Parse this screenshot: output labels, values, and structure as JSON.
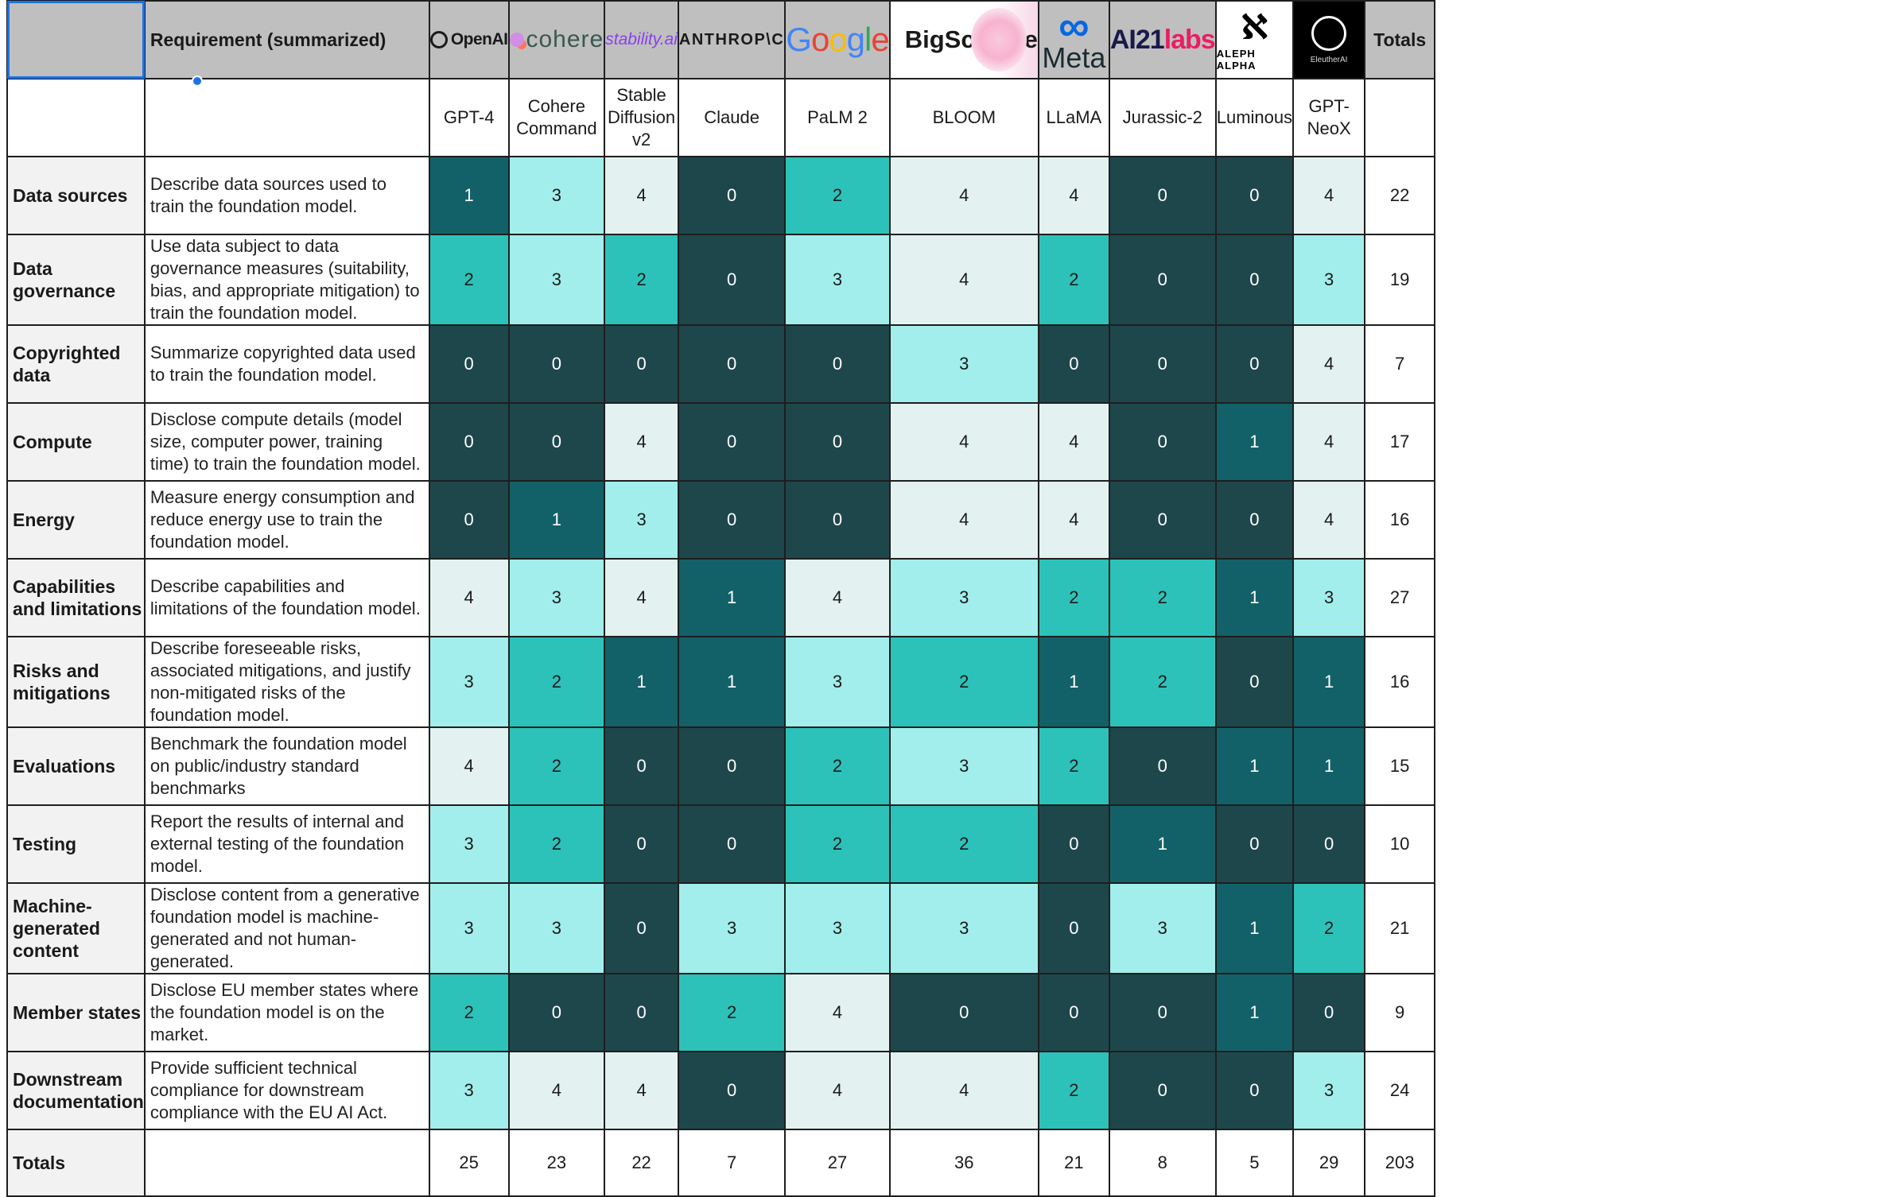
{
  "header": {
    "requirement_label": "Requirement (summarized)",
    "totals_label": "Totals",
    "logos": [
      {
        "name": "OpenAI",
        "icon": "openai-icon"
      },
      {
        "name": "cohere",
        "icon": "cohere-icon"
      },
      {
        "name": "stability.ai",
        "icon": "stability-icon"
      },
      {
        "name": "ANTHROP\\C",
        "icon": "anthropic-icon"
      },
      {
        "name": "Google",
        "icon": "google-icon"
      },
      {
        "name": "BigScience",
        "icon": "bigscience-blossom-icon"
      },
      {
        "name": "Meta",
        "icon": "meta-infinity-icon"
      },
      {
        "name": "AI21labs",
        "icon": "ai21-icon"
      },
      {
        "name": "ALEPH ALPHA",
        "icon": "aleph-alpha-icon"
      },
      {
        "name": "EleutherAI",
        "icon": "eleuther-icon"
      }
    ]
  },
  "models": [
    "GPT-4",
    "Cohere Command",
    "Stable Diffusion v2",
    "Claude",
    "PaLM 2",
    "BLOOM",
    "LLaMA",
    "Jurassic-2",
    "Luminous",
    "GPT-NeoX"
  ],
  "color_scale": {
    "0": {
      "bg": "#1e474c",
      "fg": "#ffffff"
    },
    "1": {
      "bg": "#136168",
      "fg": "#ffffff"
    },
    "2": {
      "bg": "#2cc2b9",
      "fg": "#1a1a1a"
    },
    "3": {
      "bg": "#a2eeec",
      "fg": "#1a1a1a"
    },
    "4": {
      "bg": "#e3f2f1",
      "fg": "#1a1a1a"
    }
  },
  "rows": [
    {
      "label": "Data sources",
      "requirement": "Describe data sources used to train the foundation model.",
      "scores": [
        "1",
        "3",
        "4",
        "0",
        "2",
        "4",
        "4",
        "0",
        "0",
        "4"
      ],
      "total": "22"
    },
    {
      "label": "Data governance",
      "requirement": "Use data subject to data governance measures (suitability, bias, and appropriate mitigation) to train the foundation model.",
      "scores": [
        "2",
        "3",
        "2",
        "0",
        "3",
        "4",
        "2",
        "0",
        "0",
        "3"
      ],
      "total": "19"
    },
    {
      "label": "Copyrighted data",
      "requirement": "Summarize copyrighted data used to train the foundation model.",
      "scores": [
        "0",
        "0",
        "0",
        "0",
        "0",
        "3",
        "0",
        "0",
        "0",
        "4"
      ],
      "total": "7"
    },
    {
      "label": "Compute",
      "requirement": "Disclose compute details (model size, computer power, training time) to train the foundation model.",
      "scores": [
        "0",
        "0",
        "4",
        "0",
        "0",
        "4",
        "4",
        "0",
        "1",
        "4"
      ],
      "total": "17"
    },
    {
      "label": "Energy",
      "requirement": "Measure energy consumption and reduce energy use to train the foundation model.",
      "scores": [
        "0",
        "1",
        "3",
        "0",
        "0",
        "4",
        "4",
        "0",
        "0",
        "4"
      ],
      "total": "16"
    },
    {
      "label": "Capabilities and limitations",
      "requirement": "Describe capabilities and limitations of the foundation model.",
      "scores": [
        "4",
        "3",
        "4",
        "1",
        "4",
        "3",
        "2",
        "2",
        "1",
        "3"
      ],
      "total": "27"
    },
    {
      "label": "Risks and mitigations",
      "requirement": "Describe foreseeable risks, associated mitigations, and justify non-mitigated risks of the foundation model.",
      "scores": [
        "3",
        "2",
        "1",
        "1",
        "3",
        "2",
        "1",
        "2",
        "0",
        "1"
      ],
      "total": "16"
    },
    {
      "label": "Evaluations",
      "requirement": "Benchmark the foundation model on public/industry standard benchmarks",
      "scores": [
        "4",
        "2",
        "0",
        "0",
        "2",
        "3",
        "2",
        "0",
        "1",
        "1"
      ],
      "total": "15"
    },
    {
      "label": "Testing",
      "requirement": "Report the results of internal and external testing of the foundation model.",
      "scores": [
        "3",
        "2",
        "0",
        "0",
        "2",
        "2",
        "0",
        "1",
        "0",
        "0"
      ],
      "total": "10"
    },
    {
      "label": "Machine-generated content",
      "requirement": "Disclose content from a generative foundation model is machine-generated and not human-generated.",
      "scores": [
        "3",
        "3",
        "0",
        "3",
        "3",
        "3",
        "0",
        "3",
        "1",
        "2"
      ],
      "total": "21"
    },
    {
      "label": "Member states",
      "requirement": "Disclose EU member states where the foundation model is on the market.",
      "scores": [
        "2",
        "0",
        "0",
        "2",
        "4",
        "0",
        "0",
        "0",
        "1",
        "0"
      ],
      "total": "9"
    },
    {
      "label": "Downstream documentation",
      "requirement": "Provide sufficient technical compliance for downstream compliance with the EU AI Act.",
      "scores": [
        "3",
        "4",
        "4",
        "0",
        "4",
        "4",
        "2",
        "0",
        "0",
        "3"
      ],
      "total": "24"
    }
  ],
  "totals_row": {
    "label": "Totals",
    "values": [
      "25",
      "23",
      "22",
      "7",
      "27",
      "36",
      "21",
      "8",
      "5",
      "29"
    ],
    "grand_total": "203"
  }
}
